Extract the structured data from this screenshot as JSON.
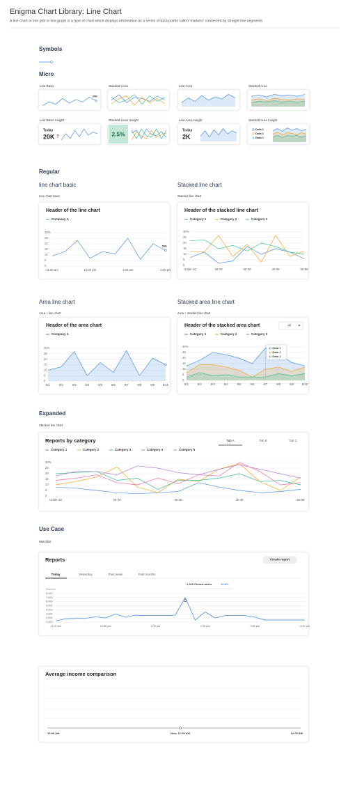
{
  "header": {
    "title": "Enigma Chart Library: Line Chart",
    "description": "A line chart or line plot or line graph is a type of chart which displays information as a series of data points called 'markers' connected by straight line segments."
  },
  "sections": {
    "symbols": "Symbols",
    "micro": "Micro",
    "regular": "Regular",
    "expanded": "Expanded",
    "use_case": "Use Case"
  },
  "micro": [
    {
      "label": "Line Basic",
      "chart": {
        "type": "line",
        "end_marker": true,
        "end_label": "20K",
        "series": [
          {
            "color": "#4a8fe0",
            "values": [
              5,
              8,
              6,
              11,
              7,
              10,
              8,
              12,
              9
            ]
          }
        ]
      }
    },
    {
      "label": "Stacked Lines",
      "chart": {
        "type": "line",
        "series": [
          {
            "color": "#4a8fe0",
            "values": [
              8,
              12,
              6,
              10,
              9,
              7,
              11,
              8
            ]
          },
          {
            "color": "#f5a524",
            "values": [
              5,
              9,
              11,
              4,
              10,
              6,
              9,
              5
            ]
          },
          {
            "color": "#3dbd96",
            "values": [
              10,
              6,
              8,
              12,
              5,
              11,
              7,
              10
            ]
          }
        ]
      }
    },
    {
      "label": "Line Area",
      "chart": {
        "type": "area",
        "series": [
          {
            "color": "#4a8fe0",
            "values": [
              6,
              10,
              7,
              12,
              8,
              11,
              9,
              13,
              10
            ]
          }
        ]
      }
    },
    {
      "label": "Stacked Area",
      "chart": {
        "type": "area",
        "series": [
          {
            "color": "#4a8fe0",
            "values": [
              14,
              16,
              13,
              17,
              15,
              16,
              14,
              17
            ]
          },
          {
            "color": "#f5a524",
            "values": [
              8,
              10,
              7,
              11,
              9,
              8,
              10,
              9
            ]
          },
          {
            "color": "#3dbd96",
            "values": [
              4,
              6,
              5,
              7,
              5,
              6,
              5,
              6
            ]
          }
        ]
      }
    },
    {
      "label": "Line Basic Insight",
      "kpi_caption": "Today",
      "kpi": "20K",
      "chart": {
        "type": "line",
        "series": [
          {
            "color": "#4a8fe0",
            "values": [
              5,
              9,
              6,
              11,
              7,
              12,
              8,
              10,
              9
            ]
          }
        ]
      }
    },
    {
      "label": "Stacked Lines Insight",
      "kpi": "2.5%",
      "chart": {
        "type": "line",
        "series": [
          {
            "color": "#4a8fe0",
            "values": [
              9,
              11,
              5,
              12,
              8,
              7,
              10,
              6
            ]
          },
          {
            "color": "#f5a524",
            "values": [
              4,
              10,
              7,
              5,
              11,
              6,
              8,
              9
            ]
          },
          {
            "color": "#3dbd96",
            "values": [
              11,
              5,
              12,
              7,
              6,
              12,
              5,
              11
            ]
          }
        ]
      }
    },
    {
      "label": "Line Area Insight",
      "kpi_caption": "Today",
      "kpi": "2K",
      "chart": {
        "type": "area",
        "series": [
          {
            "color": "#4a8fe0",
            "values": [
              6,
              11,
              5,
              12,
              7,
              13,
              8,
              11,
              9
            ]
          }
        ]
      }
    },
    {
      "label": "Stacked Area Insight",
      "chart": {
        "type": "area",
        "series": [
          {
            "name": "Data 1",
            "color": "#4a8fe0",
            "values": [
              13,
              16,
              12,
              17,
              14,
              16,
              13,
              15
            ]
          },
          {
            "name": "Data 1",
            "color": "#f5a524",
            "values": [
              8,
              11,
              7,
              10,
              9,
              7,
              10,
              8
            ]
          },
          {
            "name": "Data 1",
            "color": "#3dbd96",
            "values": [
              4,
              6,
              3,
              6,
              5,
              6,
              4,
              5
            ]
          }
        ]
      }
    }
  ],
  "regular": [
    {
      "heading": "line chart basic",
      "caption": "Line chart basic",
      "card_title": "Header of the line chart",
      "chart": {
        "type": "line",
        "end_marker": true,
        "end_label": "50K",
        "ylim": [
          0,
          30
        ],
        "yticks": [
          0,
          5,
          10,
          15,
          20,
          25,
          {
            "value": 30,
            "label": "30%"
          }
        ],
        "categories": [
          "11:00 am",
          null,
          null,
          "12:00 pm",
          null,
          null,
          "1:00 pm",
          null,
          null,
          "2:00 pm"
        ],
        "series": [
          {
            "name": "Company A",
            "color": "#4a8fe0",
            "values": [
              9,
              13,
              23,
              7,
              13,
              11,
              25,
              6,
              20,
              14
            ]
          }
        ]
      }
    },
    {
      "heading": "Stacked line chart",
      "caption": "Stacked line chart",
      "card_title": "Header of the stacked line chart",
      "chart": {
        "type": "line",
        "ylim": [
          0,
          30
        ],
        "yticks": [
          0,
          5,
          10,
          15,
          20,
          25,
          {
            "value": 30,
            "label": "30%"
          }
        ],
        "categories": [
          "Under 20",
          null,
          "20-29",
          null,
          "30-39",
          null,
          "40-49",
          null,
          "50-59"
        ],
        "series": [
          {
            "name": "Category 1",
            "color": "#4a8fe0",
            "values": [
              7,
              12,
              2,
              4,
              17,
              10,
              15,
              12,
              6
            ]
          },
          {
            "name": "Category 2",
            "color": "#f5a524",
            "values": [
              13,
              12,
              27,
              8,
              19,
              3,
              27,
              8,
              13
            ]
          },
          {
            "name": "Category 3",
            "color": "#3dbd96",
            "values": [
              22,
              23,
              15,
              18,
              13,
              20,
              17,
              12,
              10
            ]
          }
        ]
      }
    },
    {
      "heading": "Area line chart",
      "caption": "Area + line chart",
      "card_title": "Header of the area chart",
      "chart": {
        "type": "area",
        "end_marker": true,
        "ylim": [
          0,
          30
        ],
        "yticks": [
          0,
          5,
          10,
          15,
          20,
          25,
          {
            "value": 30,
            "label": "30%"
          }
        ],
        "categories": [
          "8/1",
          "8/2",
          "8/3",
          "8/4",
          "8/5",
          "8/6",
          "8/7",
          "8/8",
          "8/9",
          "8/10"
        ],
        "series": [
          {
            "name": "Company A",
            "color": "#4a8fe0",
            "values": [
              10,
              13,
              27,
              5,
              17,
              8,
              28,
              5,
              21,
              15
            ]
          }
        ]
      }
    },
    {
      "heading": "Stacked area line chart",
      "caption": "Area + stacked line chart",
      "card_title": "Header of the stacked area chart",
      "dropdown": "All",
      "tooltip_labels": [
        "Data 1",
        "Data 1",
        "Data 1"
      ],
      "chart": {
        "type": "area",
        "ylim": [
          0,
          30
        ],
        "yticks": [
          0,
          5,
          10,
          15,
          20,
          25,
          {
            "value": 30,
            "label": "30%"
          }
        ],
        "categories": [
          "8/1",
          "8/2",
          "8/3",
          "8/4",
          "8/5",
          "8/6",
          "8/7",
          "8/8",
          "8/9",
          "8/10"
        ],
        "series": [
          {
            "name": "Category 1",
            "color": "#4a8fe0",
            "values": [
              13,
              18,
              25,
              23,
              20,
              15,
              29,
              24,
              16,
              13
            ]
          },
          {
            "name": "Category 2",
            "color": "#f5a524",
            "values": [
              7,
              14,
              14,
              12,
              9,
              3,
              10,
              12,
              8,
              12
            ]
          },
          {
            "name": "Category 3",
            "color": "#3dbd96",
            "values": [
              3,
              7,
              4,
              5,
              3,
              3,
              3,
              6,
              4,
              6
            ]
          }
        ]
      }
    }
  ],
  "expanded": {
    "caption": "Stacked line chart",
    "card_title": "Reports by category",
    "tabs": [
      "Tab A",
      "Tab B",
      "Tab C"
    ],
    "chart": {
      "type": "line",
      "ylim": [
        0,
        30
      ],
      "yticks": [
        0,
        5,
        10,
        15,
        20,
        25,
        {
          "value": 30,
          "label": "30%"
        }
      ],
      "categories": [
        "Under 20",
        null,
        null,
        "20-29",
        null,
        null,
        "30-39",
        null,
        null,
        "40-49",
        null,
        null,
        "50-59"
      ],
      "series": [
        {
          "name": "Category 1",
          "color": "#4a8fe0",
          "values": [
            8,
            7,
            5,
            3,
            2,
            3,
            4,
            12,
            8,
            5,
            3,
            4,
            6
          ]
        },
        {
          "name": "Category 2",
          "color": "#f5a524",
          "values": [
            10,
            13,
            17,
            26,
            8,
            3,
            15,
            13,
            24,
            29,
            13,
            5,
            17
          ]
        },
        {
          "name": "Category 3",
          "color": "#3dbd96",
          "values": [
            20,
            21,
            22,
            14,
            16,
            6,
            14,
            14,
            16,
            20,
            13,
            14,
            10
          ]
        },
        {
          "name": "Category 4",
          "color": "#b07cd9",
          "values": [
            18,
            22,
            22,
            19,
            27,
            25,
            21,
            19,
            24,
            28,
            24,
            20,
            16
          ]
        },
        {
          "name": "Category 5",
          "color": "#ef6fa6",
          "values": [
            14,
            16,
            19,
            12,
            10,
            16,
            11,
            19,
            18,
            30,
            22,
            10,
            12
          ]
        }
      ]
    }
  },
  "use_case": {
    "caption": "Watchlist",
    "card_title": "Reports",
    "button": "Create report",
    "tabs": [
      "Today",
      "Yesterday",
      "Past week",
      "Past months"
    ],
    "tooltip": {
      "label": "1,200 Closed alerts",
      "value": "10.8%"
    },
    "chart": {
      "type": "line",
      "y_axis_label": "Records",
      "ylim": [
        1000,
        8000
      ],
      "yticks": [
        {
          "value": 1000,
          "label": "1,000"
        },
        {
          "value": 2000,
          "label": "2,000"
        },
        {
          "value": 3000,
          "label": "3,000"
        },
        {
          "value": 4000,
          "label": "4,000"
        },
        {
          "value": 5000,
          "label": "5,000"
        },
        {
          "value": 6000,
          "label": "6,000"
        },
        {
          "value": 7000,
          "label": "7,000"
        },
        {
          "value": 8000,
          "label": "8,000"
        }
      ],
      "categories": [
        "11:00 am",
        null,
        null,
        null,
        null,
        "12:00 pm",
        null,
        null,
        null,
        null,
        "1:00 pm",
        null,
        null,
        null,
        null,
        "2:00 pm",
        null,
        null,
        null,
        null,
        "3:00 pm",
        null,
        null,
        null,
        null,
        "4:00 pm"
      ],
      "series": [
        {
          "color": "#4a8fe0",
          "values": [
            1300,
            1800,
            1900,
            1900,
            2300,
            2000,
            3000,
            2200,
            2700,
            2600,
            2600,
            2600,
            2700,
            7000,
            1500,
            3500,
            2000,
            2600,
            2600,
            2600,
            2200,
            1500,
            1500,
            1500,
            1500,
            1500
          ]
        }
      ]
    }
  },
  "comparison": {
    "card_title": "Average income comparison",
    "axis_labels": [
      "10:00 AM",
      "Now, 11:00 AM",
      "12:00 AM"
    ]
  }
}
